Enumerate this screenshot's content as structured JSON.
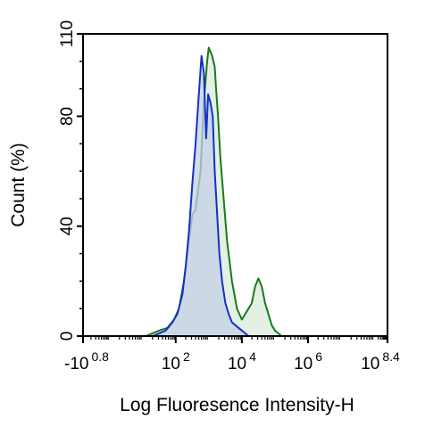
{
  "chart_data": {
    "type": "area",
    "title": "",
    "xlabel": "Log Fluoresence Intensity-H",
    "ylabel": "Count  (%)",
    "xscale": "biexponential-log",
    "xlim": [
      -0.8,
      8.4
    ],
    "ylim": [
      0,
      110
    ],
    "grid": false,
    "y_ticks": [
      0,
      40,
      80,
      110
    ],
    "x_ticks": [
      {
        "base": "-10",
        "exp": "0.8",
        "value": -0.8
      },
      {
        "base": "10",
        "exp": "2",
        "value": 2
      },
      {
        "base": "10",
        "exp": "4",
        "value": 4
      },
      {
        "base": "10",
        "exp": "6",
        "value": 6
      },
      {
        "base": "10",
        "exp": "8.4",
        "value": 8.4
      }
    ],
    "series": [
      {
        "color": "#1a7a1a",
        "fill": "#dcebdc",
        "x": [
          0.95,
          1.1,
          1.3,
          1.5,
          1.75,
          1.95,
          2.1,
          2.25,
          2.35,
          2.5,
          2.6,
          2.75,
          2.85,
          2.95,
          3.0,
          3.1,
          3.18,
          3.22,
          3.28,
          3.35,
          3.45,
          3.55,
          3.7,
          3.85,
          4.0,
          4.1,
          4.2,
          4.3,
          4.4,
          4.5,
          4.6,
          4.7,
          4.8,
          4.9,
          5.0,
          5.1,
          5.2,
          5.3
        ],
        "y": [
          0,
          0,
          1,
          2,
          3,
          6,
          10,
          20,
          30,
          44,
          46,
          60,
          85,
          100,
          105,
          102,
          98,
          90,
          80,
          65,
          50,
          35,
          20,
          10,
          6,
          8,
          10,
          12,
          18,
          21,
          18,
          12,
          8,
          4,
          2,
          1,
          0,
          0
        ]
      },
      {
        "color": "#1530c8",
        "fill": "#c3d0e4",
        "x": [
          1.0,
          1.3,
          1.5,
          1.7,
          1.9,
          2.05,
          2.2,
          2.3,
          2.4,
          2.5,
          2.6,
          2.7,
          2.78,
          2.85,
          2.92,
          2.98,
          3.05,
          3.12,
          3.18,
          3.25,
          3.32,
          3.4,
          3.5,
          3.6,
          3.7,
          3.8,
          3.9,
          4.0,
          4.1,
          4.2,
          4.35
        ],
        "y": [
          0,
          0,
          1,
          2,
          5,
          8,
          15,
          25,
          38,
          55,
          70,
          88,
          102,
          96,
          72,
          88,
          85,
          80,
          60,
          45,
          30,
          20,
          12,
          8,
          5,
          4,
          3,
          2,
          1,
          0,
          0
        ]
      }
    ]
  }
}
